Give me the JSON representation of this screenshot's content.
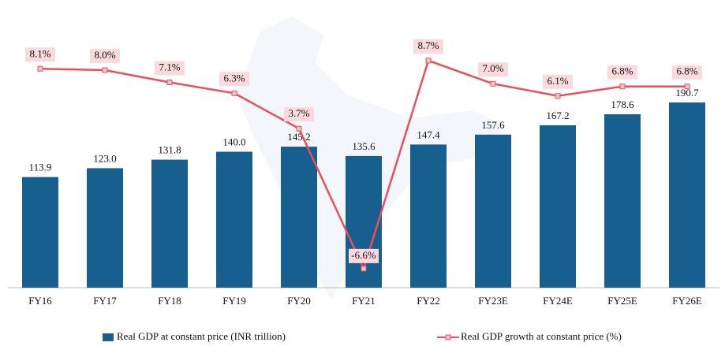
{
  "chart_data": {
    "type": "combo",
    "categories": [
      "FY16",
      "FY17",
      "FY18",
      "FY19",
      "FY20",
      "FY21",
      "FY22",
      "FY23E",
      "FY24E",
      "FY25E",
      "FY26E"
    ],
    "series": [
      {
        "name": "Real GDP at constant price (INR trillion)",
        "type": "bar",
        "color": "#175f8e",
        "values": [
          113.9,
          123.0,
          131.8,
          140.0,
          145.2,
          135.6,
          147.4,
          157.6,
          167.2,
          178.6,
          190.7
        ],
        "value_labels": [
          "113.9",
          "123.0",
          "131.8",
          "140.0",
          "145.2",
          "135.6",
          "147.4",
          "157.6",
          "167.2",
          "178.6",
          "190.7"
        ]
      },
      {
        "name": "Real GDP growth at constant price (%)",
        "type": "line",
        "axis": "y2",
        "color": "#e8505b",
        "values": [
          8.1,
          8.0,
          7.1,
          6.3,
          3.7,
          -6.6,
          8.7,
          7.0,
          6.1,
          6.8,
          6.8
        ],
        "value_labels": [
          "8.1%",
          "8.0%",
          "7.1%",
          "6.3%",
          "3.7%",
          "-6.6%",
          "8.7%",
          "7.0%",
          "6.1%",
          "6.8%",
          "6.8%"
        ]
      }
    ],
    "ylim": [
      0,
      280
    ],
    "y2lim": [
      -8,
      12
    ]
  }
}
